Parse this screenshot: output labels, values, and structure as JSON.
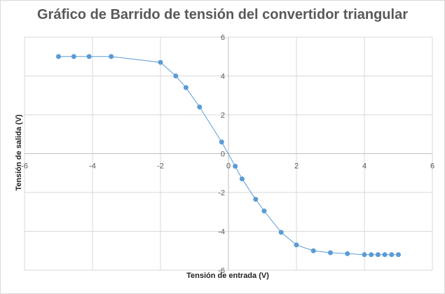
{
  "chart_data": {
    "type": "scatter",
    "title": "Gráfico de Barrido de tensión del convertidor triangular",
    "xlabel": "Tensión de entrada (V)",
    "ylabel": "Tensión de salida (V)",
    "xlim": [
      -6,
      6
    ],
    "ylim": [
      -6,
      6
    ],
    "xticks": [
      -6,
      -4,
      -2,
      0,
      2,
      4,
      6
    ],
    "yticks": [
      -6,
      -4,
      -2,
      0,
      2,
      4,
      6
    ],
    "xtick_labels": [
      "-6",
      "-4",
      "-2",
      "0",
      "2",
      "4",
      "6"
    ],
    "ytick_labels": [
      "-6",
      "-4",
      "-2",
      "0",
      "2",
      "4",
      "6"
    ],
    "grid": "horizontal",
    "legend": "none",
    "series": [
      {
        "marker": "circle",
        "line": "straight",
        "color": "#5b9bd5",
        "x": [
          -5.0,
          -4.55,
          -4.1,
          -3.45,
          -2.0,
          -1.55,
          -1.25,
          -0.85,
          -0.2,
          0.2,
          0.4,
          0.8,
          1.05,
          1.55,
          2.0,
          2.5,
          3.0,
          3.5,
          4.0,
          4.2,
          4.4,
          4.6,
          4.8,
          5.0
        ],
        "y": [
          5.0,
          5.0,
          5.0,
          5.0,
          4.7,
          4.0,
          3.4,
          2.4,
          0.6,
          -0.65,
          -1.3,
          -2.35,
          -2.95,
          -4.05,
          -4.7,
          -5.0,
          -5.1,
          -5.15,
          -5.2,
          -5.2,
          -5.2,
          -5.2,
          -5.2,
          -5.2
        ]
      }
    ]
  }
}
